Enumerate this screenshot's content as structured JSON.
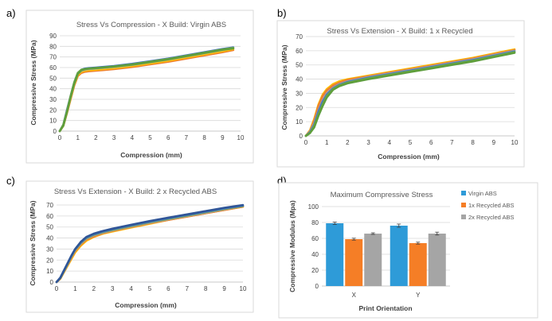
{
  "chart_data": [
    {
      "type": "line",
      "panel_label": "a)",
      "title": "Stress Vs Compression - X Build: Virgin ABS",
      "xlabel": "Compression (mm)",
      "ylabel": "Compressive Stress (MPa)",
      "xlim": [
        0,
        10
      ],
      "ylim": [
        0,
        90
      ],
      "xticks": [
        0,
        1,
        2,
        3,
        4,
        5,
        6,
        7,
        8,
        9,
        10
      ],
      "yticks": [
        0,
        10,
        20,
        30,
        40,
        50,
        60,
        70,
        80,
        90
      ],
      "grid": true,
      "series": [
        {
          "color": "#ed7d31",
          "x": [
            0,
            0.2,
            0.4,
            0.6,
            0.8,
            1.0,
            1.2,
            1.4,
            1.6,
            2,
            3,
            4,
            5,
            6,
            7,
            8,
            9,
            9.6
          ],
          "y": [
            0,
            5,
            17,
            30,
            43,
            52,
            55,
            56,
            56.5,
            57,
            58.5,
            60.5,
            63,
            65.5,
            68.5,
            71.5,
            74.5,
            76.5
          ]
        },
        {
          "color": "#ffc000",
          "x": [
            0,
            0.2,
            0.4,
            0.6,
            0.8,
            1.0,
            1.2,
            1.4,
            1.6,
            2,
            3,
            4,
            5,
            6,
            7,
            8,
            9,
            9.6
          ],
          "y": [
            0,
            5,
            18,
            31,
            44,
            53,
            56,
            57,
            57.5,
            58,
            59.5,
            61.5,
            64,
            66.5,
            69.5,
            72.5,
            75.5,
            77.5
          ]
        },
        {
          "color": "#a5a5a5",
          "x": [
            0,
            0.2,
            0.4,
            0.6,
            0.8,
            1.0,
            1.2,
            1.4,
            1.6,
            2,
            3,
            4,
            5,
            6,
            7,
            8,
            9,
            9.6
          ],
          "y": [
            0,
            6,
            19,
            32,
            45,
            54,
            57,
            58,
            58.5,
            59,
            60.5,
            62.5,
            65,
            67.5,
            70.5,
            73.5,
            76.5,
            78.5
          ]
        },
        {
          "color": "#4472c4",
          "x": [
            0,
            0.2,
            0.4,
            0.6,
            0.8,
            1.0,
            1.2,
            1.4,
            1.6,
            2,
            3,
            4,
            5,
            6,
            7,
            8,
            9,
            9.6
          ],
          "y": [
            0,
            6,
            20,
            33,
            46,
            55,
            58,
            59,
            59.5,
            60,
            61.5,
            63.5,
            66,
            68.5,
            71.5,
            74.5,
            77.5,
            79
          ]
        },
        {
          "color": "#70ad47",
          "x": [
            0,
            0.2,
            0.4,
            0.6,
            0.8,
            1.0,
            1.2,
            1.4,
            1.6,
            2,
            3,
            4,
            5,
            6,
            7,
            8,
            9,
            9.6
          ],
          "y": [
            0,
            6,
            19,
            33,
            46,
            55,
            58,
            58.5,
            59,
            59.5,
            61,
            63,
            65.5,
            68,
            71,
            74,
            77,
            78.5
          ]
        },
        {
          "color": "#5e9e3c",
          "x": [
            0,
            0.2,
            0.4,
            0.6,
            0.8,
            1.0,
            1.2,
            1.4,
            1.6,
            2,
            3,
            4,
            5,
            6,
            7,
            8,
            9,
            9.6
          ],
          "y": [
            0,
            5,
            18,
            32,
            45,
            54,
            57.5,
            58.5,
            59,
            59.5,
            61,
            62.8,
            65.2,
            67.8,
            70.8,
            73.8,
            76.8,
            78
          ]
        }
      ]
    },
    {
      "type": "line",
      "panel_label": "b)",
      "title": "Stress Vs Extension - X Build: 1 x Recycled",
      "xlabel": "Compression (mm)",
      "ylabel": "Compressive Stress (MPa)",
      "xlim": [
        0,
        10
      ],
      "ylim": [
        0,
        70
      ],
      "xticks": [
        0,
        1,
        2,
        3,
        4,
        5,
        6,
        7,
        8,
        9,
        10
      ],
      "yticks": [
        0,
        10,
        20,
        30,
        40,
        50,
        60,
        70
      ],
      "grid": true,
      "series": [
        {
          "color": "#ffc000",
          "x": [
            0,
            0.2,
            0.4,
            0.6,
            0.8,
            1.0,
            1.3,
            1.6,
            2,
            3,
            4,
            5,
            6,
            7,
            8,
            9,
            10
          ],
          "y": [
            0,
            4,
            12,
            22,
            29,
            33,
            36.5,
            38.5,
            40,
            42.5,
            45,
            47.5,
            50,
            52.5,
            55,
            58,
            61
          ]
        },
        {
          "color": "#ed7d31",
          "x": [
            0,
            0.2,
            0.4,
            0.6,
            0.8,
            1.0,
            1.3,
            1.6,
            2,
            3,
            4,
            5,
            6,
            7,
            8,
            9,
            10
          ],
          "y": [
            0,
            3.5,
            11,
            21,
            28,
            32,
            35.5,
            37.5,
            39.5,
            42,
            44.5,
            47,
            49.5,
            52,
            54.5,
            57.5,
            60.5
          ]
        },
        {
          "color": "#a5a5a5",
          "x": [
            0,
            0.2,
            0.4,
            0.6,
            0.8,
            1.0,
            1.3,
            1.6,
            2,
            3,
            4,
            5,
            6,
            7,
            8,
            9,
            10
          ],
          "y": [
            0,
            3,
            9,
            18,
            25,
            30,
            34,
            36.5,
            38.5,
            41.5,
            44,
            46.5,
            49,
            51.5,
            54,
            57,
            60
          ]
        },
        {
          "color": "#4472c4",
          "x": [
            0,
            0.2,
            0.4,
            0.6,
            0.8,
            1.0,
            1.3,
            1.6,
            2,
            3,
            4,
            5,
            6,
            7,
            8,
            9,
            10
          ],
          "y": [
            0,
            2.5,
            8,
            17,
            24,
            29,
            33.5,
            36,
            38,
            41,
            43.5,
            46,
            48.5,
            51,
            53.5,
            56.5,
            59.5
          ]
        },
        {
          "color": "#70ad47",
          "x": [
            0,
            0.2,
            0.4,
            0.6,
            0.8,
            1.0,
            1.3,
            1.6,
            2,
            3,
            4,
            5,
            6,
            7,
            8,
            9,
            10
          ],
          "y": [
            0,
            2,
            7,
            15,
            22,
            28,
            33,
            35.5,
            37.5,
            40.5,
            43,
            45.5,
            48,
            50.5,
            53,
            56,
            59
          ]
        },
        {
          "color": "#5e9e3c",
          "x": [
            0,
            0.2,
            0.4,
            0.6,
            0.8,
            1.0,
            1.3,
            1.6,
            2,
            3,
            4,
            5,
            6,
            7,
            8,
            9,
            10
          ],
          "y": [
            0,
            2,
            6,
            14,
            21,
            27,
            32.5,
            35,
            37,
            40,
            42.5,
            45,
            47.5,
            50,
            52.5,
            55.5,
            58.5
          ]
        }
      ]
    },
    {
      "type": "line",
      "panel_label": "c)",
      "title": "Stress Vs Extension - X Build: 2 x Recycled ABS",
      "xlabel": "Compression (mm)",
      "ylabel": "Compressive Stress (MPa)",
      "xlim": [
        0,
        10
      ],
      "ylim": [
        0,
        70
      ],
      "xticks": [
        0,
        1,
        2,
        3,
        4,
        5,
        6,
        7,
        8,
        9,
        10
      ],
      "yticks": [
        0,
        10,
        20,
        30,
        40,
        50,
        60,
        70
      ],
      "grid": true,
      "series": [
        {
          "color": "#ffc000",
          "x": [
            0,
            0.2,
            0.5,
            0.8,
            1.0,
            1.3,
            1.6,
            2,
            2.5,
            3,
            4,
            5,
            6,
            7,
            8,
            9,
            10
          ],
          "y": [
            0,
            3,
            12,
            21,
            27,
            33,
            37.5,
            41,
            44,
            46,
            49.5,
            53,
            56.5,
            59.5,
            62.5,
            65.5,
            68.5
          ]
        },
        {
          "color": "#ed7d31",
          "x": [
            0,
            0.2,
            0.5,
            0.8,
            1.0,
            1.3,
            1.6,
            2,
            2.5,
            3,
            4,
            5,
            6,
            7,
            8,
            9,
            10
          ],
          "y": [
            0,
            3,
            12.5,
            22,
            28,
            34,
            38.5,
            41.5,
            44.5,
            46.5,
            50,
            53.5,
            56.5,
            59.5,
            62.5,
            65.5,
            68.5
          ]
        },
        {
          "color": "#a5a5a5",
          "x": [
            0,
            0.2,
            0.5,
            0.8,
            1.0,
            1.3,
            1.6,
            2,
            2.5,
            3,
            4,
            5,
            6,
            7,
            8,
            9,
            10
          ],
          "y": [
            0,
            3.5,
            13,
            23,
            29,
            35,
            39.5,
            42.5,
            45,
            47,
            50.5,
            54,
            57,
            60,
            63,
            66,
            69
          ]
        },
        {
          "color": "#70ad47",
          "x": [
            0,
            0.2,
            0.5,
            0.8,
            1.0,
            1.3,
            1.6,
            2,
            2.5,
            3,
            4,
            5,
            6,
            7,
            8,
            9,
            10
          ],
          "y": [
            0,
            3.5,
            13.5,
            23.5,
            29.5,
            35.5,
            40,
            43,
            45.5,
            47.5,
            51,
            54.5,
            57.5,
            60.5,
            63.5,
            66.5,
            69
          ]
        },
        {
          "color": "#4472c4",
          "x": [
            0,
            0.2,
            0.5,
            0.8,
            1.0,
            1.3,
            1.6,
            2,
            2.5,
            3,
            4,
            5,
            6,
            7,
            8,
            9,
            10
          ],
          "y": [
            0,
            4,
            14,
            24,
            30,
            36,
            40.5,
            43.5,
            46,
            48,
            51.5,
            55,
            58,
            61,
            64,
            67,
            69.5
          ]
        },
        {
          "color": "#2f5597",
          "x": [
            0,
            0.2,
            0.5,
            0.8,
            1.0,
            1.3,
            1.6,
            2,
            2.5,
            3,
            4,
            5,
            6,
            7,
            8,
            9,
            10
          ],
          "y": [
            0,
            4,
            14,
            24,
            30,
            36.5,
            41,
            44,
            46.5,
            48.5,
            52,
            55.5,
            58.5,
            61.5,
            64.5,
            67.5,
            70
          ]
        }
      ]
    },
    {
      "type": "bar",
      "panel_label": "d)",
      "title": "Maximum Compressive Stress",
      "xlabel": "Print Orientation",
      "ylabel": "Compressive Modulus (Mpa)",
      "categories": [
        "X",
        "Y"
      ],
      "ylim": [
        0,
        100
      ],
      "yticks": [
        0,
        20,
        40,
        60,
        80,
        100
      ],
      "grid": true,
      "legend_position": "right",
      "series": [
        {
          "name": "Virgin ABS",
          "color": "#2e9bd8",
          "values": [
            79,
            76
          ],
          "errors": [
            1.5,
            2
          ]
        },
        {
          "name": "1x Recycled ABS",
          "color": "#f57e26",
          "values": [
            59,
            54
          ],
          "errors": [
            1.2,
            1.2
          ]
        },
        {
          "name": "2x Recycled ABS",
          "color": "#a5a5a5",
          "values": [
            66,
            66
          ],
          "errors": [
            1,
            1.8
          ]
        }
      ]
    }
  ]
}
